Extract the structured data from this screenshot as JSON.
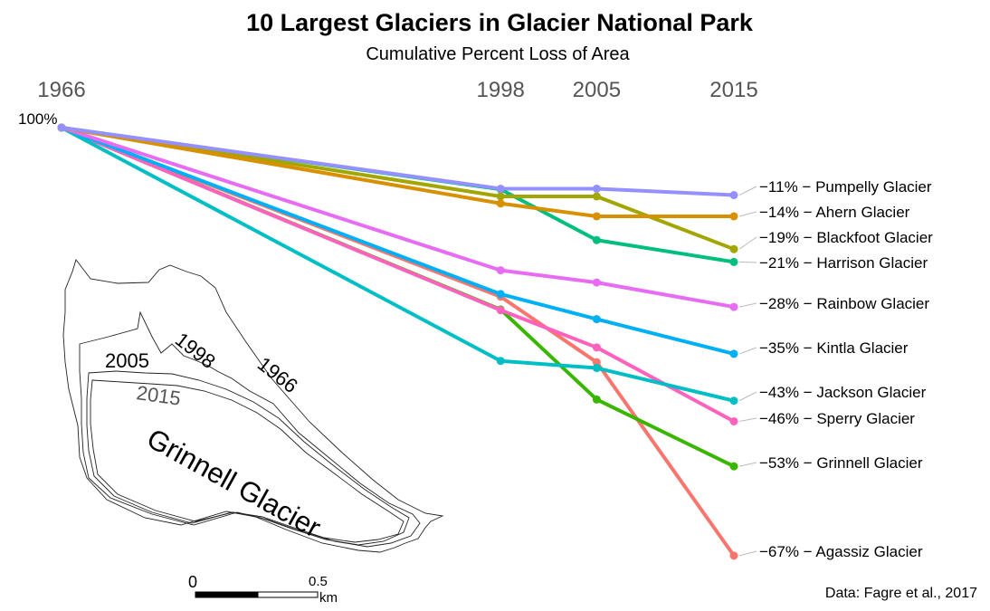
{
  "chart_data": {
    "type": "line",
    "title": "10 Largest Glaciers in Glacier National Park",
    "subtitle": "Cumulative Percent Loss of Area",
    "x": [
      1966,
      1998,
      2005,
      2015
    ],
    "x_labels": [
      "1966",
      "1998",
      "2005",
      "2015"
    ],
    "start_label": "100%",
    "ylim": [
      -70,
      0
    ],
    "series": [
      {
        "name": "Pumpelly Glacier",
        "label": "−11% − Pumpelly Glacier",
        "values": [
          0,
          -9.5,
          -9.5,
          -10.5
        ],
        "color": "#9590FF"
      },
      {
        "name": "Ahern Glacier",
        "label": "−14% − Ahern Glacier",
        "values": [
          0,
          -11.8,
          -13.8,
          -13.8
        ],
        "color": "#D89000"
      },
      {
        "name": "Blackfoot Glacier",
        "label": "−19% − Blackfoot Glacier",
        "values": [
          0,
          -10.7,
          -10.7,
          -18.9
        ],
        "color": "#A3A500"
      },
      {
        "name": "Harrison Glacier",
        "label": "−21% − Harrison Glacier",
        "values": [
          0,
          -9.6,
          -17.5,
          -20.9
        ],
        "color": "#00BF7D"
      },
      {
        "name": "Rainbow Glacier",
        "label": "−28% − Rainbow Glacier",
        "values": [
          0,
          -22.2,
          -24.1,
          -27.9
        ],
        "color": "#E76BF3"
      },
      {
        "name": "Kintla Glacier",
        "label": "−35% − Kintla Glacier",
        "values": [
          0,
          -25.9,
          -29.8,
          -35.2
        ],
        "color": "#00B0F6"
      },
      {
        "name": "Jackson Glacier",
        "label": "−43% − Jackson Glacier",
        "values": [
          0,
          -36.3,
          -37.4,
          -42.5
        ],
        "color": "#00BFC4"
      },
      {
        "name": "Sperry Glacier",
        "label": "−46% − Sperry Glacier",
        "values": [
          0,
          -28.4,
          -34.2,
          -45.7
        ],
        "color": "#FF62BC"
      },
      {
        "name": "Grinnell Glacier",
        "label": "−53% − Grinnell Glacier",
        "values": [
          0,
          -28.3,
          -42.3,
          -52.7
        ],
        "color": "#39B600"
      },
      {
        "name": "Agassiz Glacier",
        "label": "−67% − Agassiz Glacier",
        "values": [
          0,
          -26.3,
          -36.5,
          -66.6
        ],
        "color": "#F8766D"
      }
    ],
    "grid": false,
    "legend": "direct labels at right"
  },
  "inset_map": {
    "name": "Grinnell Glacier",
    "outline_years": [
      "1966",
      "1998",
      "2005",
      "2015"
    ],
    "scale_labels": [
      "0",
      "0.5",
      "km"
    ]
  },
  "caption": "Data: Fagre et al., 2017"
}
